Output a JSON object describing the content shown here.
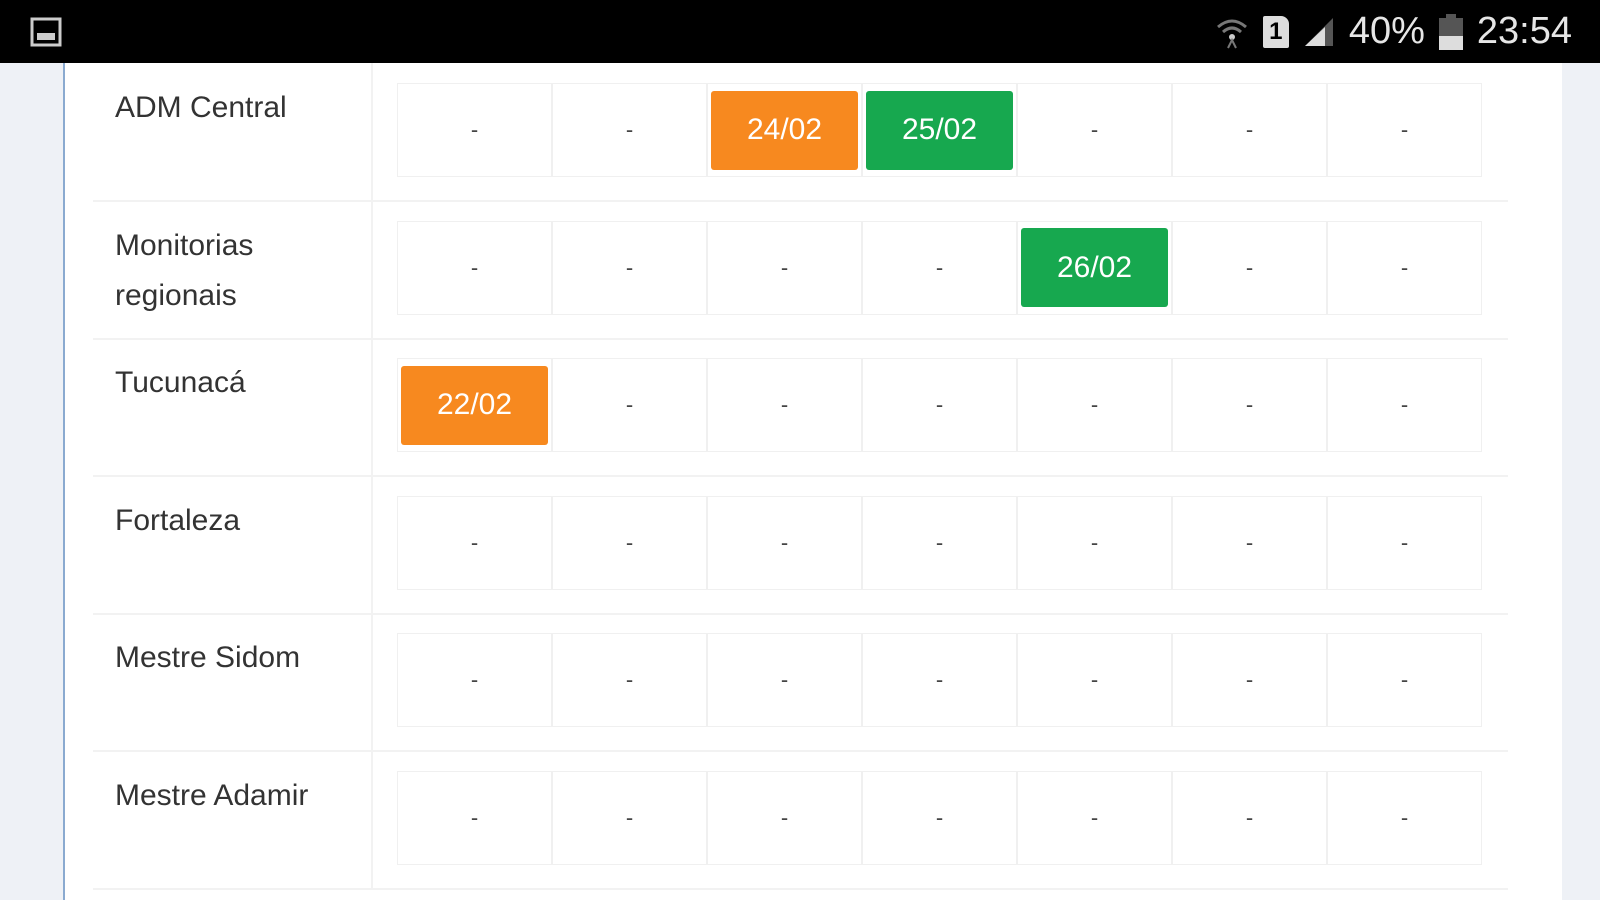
{
  "status_bar": {
    "battery": "40%",
    "time": "23:54",
    "sim": "1",
    "icons": [
      "gallery-icon",
      "wifi-icon",
      "sim-icon",
      "signal-icon",
      "battery-icon"
    ]
  },
  "colors": {
    "orange": "#f7891f",
    "green": "#17a84f"
  },
  "rows": [
    {
      "label": "ADM Central",
      "cells": [
        {
          "text": "-"
        },
        {
          "text": "-"
        },
        {
          "text": "24/02",
          "status": "orange"
        },
        {
          "text": "25/02",
          "status": "green"
        },
        {
          "text": "-"
        },
        {
          "text": "-"
        },
        {
          "text": "-"
        }
      ]
    },
    {
      "label": "Monitorias regionais",
      "cells": [
        {
          "text": "-"
        },
        {
          "text": "-"
        },
        {
          "text": "-"
        },
        {
          "text": "-"
        },
        {
          "text": "26/02",
          "status": "green"
        },
        {
          "text": "-"
        },
        {
          "text": "-"
        }
      ]
    },
    {
      "label": "Tucunacá",
      "cells": [
        {
          "text": "22/02",
          "status": "orange"
        },
        {
          "text": "-"
        },
        {
          "text": "-"
        },
        {
          "text": "-"
        },
        {
          "text": "-"
        },
        {
          "text": "-"
        },
        {
          "text": "-"
        }
      ]
    },
    {
      "label": "Fortaleza",
      "cells": [
        {
          "text": "-"
        },
        {
          "text": "-"
        },
        {
          "text": "-"
        },
        {
          "text": "-"
        },
        {
          "text": "-"
        },
        {
          "text": "-"
        },
        {
          "text": "-"
        }
      ]
    },
    {
      "label": "Mestre Sidom",
      "cells": [
        {
          "text": "-"
        },
        {
          "text": "-"
        },
        {
          "text": "-"
        },
        {
          "text": "-"
        },
        {
          "text": "-"
        },
        {
          "text": "-"
        },
        {
          "text": "-"
        }
      ]
    },
    {
      "label": "Mestre Adamir",
      "cells": [
        {
          "text": "-"
        },
        {
          "text": "-"
        },
        {
          "text": "-"
        },
        {
          "text": "-"
        },
        {
          "text": "-"
        },
        {
          "text": "-"
        },
        {
          "text": "-"
        }
      ]
    }
  ]
}
